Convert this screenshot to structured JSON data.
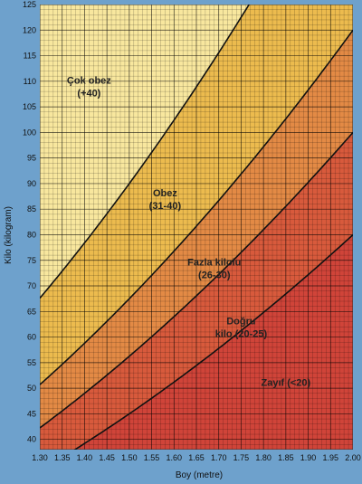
{
  "chart_data": {
    "type": "area",
    "xlabel": "Boy (metre)",
    "ylabel": "Kilo (kilogram)",
    "xlim": [
      1.3,
      2.0
    ],
    "ylim": [
      38,
      125
    ],
    "x_ticks": [
      "1.30",
      "1.35",
      "1.40",
      "1.45",
      "1.50",
      "1.55",
      "1.60",
      "1.65",
      "1.70",
      "1.75",
      "1.80",
      "1.85",
      "1.90",
      "1.95",
      "2.00"
    ],
    "y_ticks": [
      "40",
      "45",
      "50",
      "55",
      "60",
      "65",
      "70",
      "75",
      "80",
      "85",
      "90",
      "95",
      "100",
      "105",
      "110",
      "115",
      "120",
      "125"
    ],
    "grid": true,
    "zones": [
      {
        "label_lines": [
          "Çok obez",
          "(+40)"
        ],
        "bmi_min": 40,
        "color": "#f8e79e"
      },
      {
        "label_lines": [
          "Obez",
          "(31-40)"
        ],
        "bmi_min": 30,
        "bmi_max": 40,
        "color": "#ecbb4e"
      },
      {
        "label_lines": [
          "Fazla kilolu",
          "(26-30)"
        ],
        "bmi_min": 25,
        "bmi_max": 30,
        "color": "#e38a45"
      },
      {
        "label_lines": [
          "Doğru",
          "kilo (20-25)"
        ],
        "bmi_min": 20,
        "bmi_max": 25,
        "color": "#d85a3c"
      },
      {
        "label_lines": [
          "Zayıf (<20)"
        ],
        "bmi_max": 20,
        "color": "#d04439"
      }
    ],
    "boundaries_bmi": [
      40,
      30,
      25,
      20
    ],
    "zone_label_anchors": [
      {
        "x": 1.41,
        "y": 109.5
      },
      {
        "x": 1.58,
        "y": 87.5
      },
      {
        "x": 1.69,
        "y": 74
      },
      {
        "x": 1.75,
        "y": 62.5
      },
      {
        "x": 1.85,
        "y": 50.5
      }
    ]
  }
}
